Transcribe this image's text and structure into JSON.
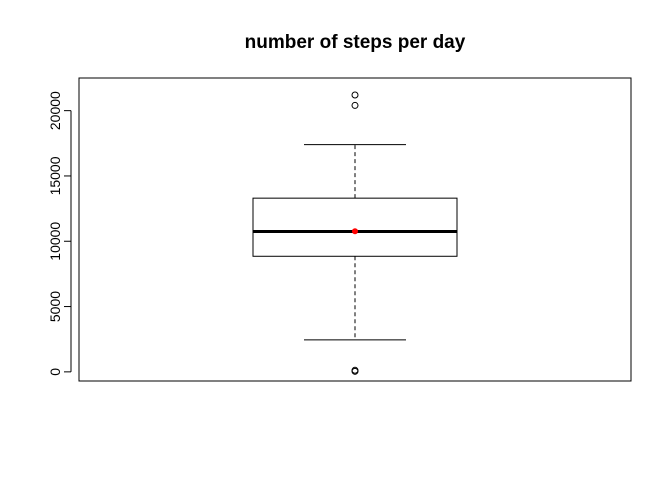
{
  "chart_data": {
    "type": "boxplot",
    "title": "number of steps per day",
    "xlabel": "",
    "ylabel": "",
    "ylim": [
      -700,
      22500
    ],
    "yticks": [
      0,
      5000,
      10000,
      15000,
      20000
    ],
    "ytick_labels": [
      "0",
      "5000",
      "10000",
      "15000",
      "20000"
    ],
    "grid": false,
    "legend": "none",
    "box": {
      "whisker_low": 2450,
      "q1": 8850,
      "median": 10750,
      "q3": 13300,
      "whisker_high": 17400,
      "mean": 10770,
      "outliers": [
        40,
        120,
        20400,
        21200
      ]
    },
    "colors": {
      "box": "#000000",
      "mean_point": "#ff0000"
    }
  }
}
